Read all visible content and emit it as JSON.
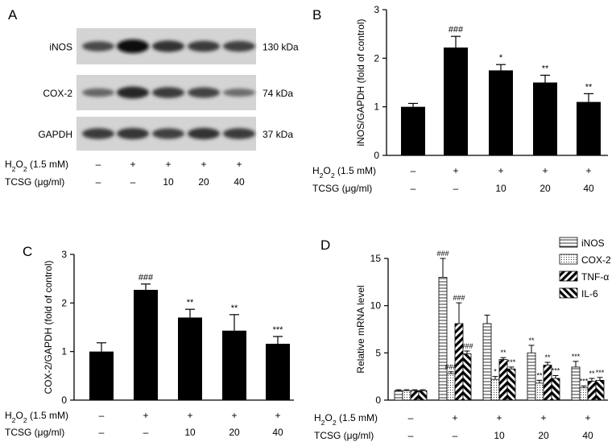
{
  "figure": {
    "panels": [
      {
        "letter": "A",
        "type": "western_blot",
        "bands": [
          {
            "protein": "iNOS",
            "size": "130 kDa",
            "intensities": [
              0.55,
              1.0,
              0.72,
              0.65,
              0.62
            ]
          },
          {
            "protein": "COX-2",
            "size": "74 kDa",
            "intensities": [
              0.35,
              0.8,
              0.65,
              0.6,
              0.3
            ]
          },
          {
            "protein": "GAPDH",
            "size": "37 kDa",
            "intensities": [
              0.65,
              0.7,
              0.62,
              0.72,
              0.65
            ]
          }
        ],
        "conditions": {
          "h2o2_label": "H2O2 (1.5 mM)",
          "tcsg_label": "TCSG (μg/ml)",
          "h2o2": [
            "–",
            "+",
            "+",
            "+",
            "+"
          ],
          "tcsg": [
            "–",
            "–",
            "10",
            "20",
            "40"
          ]
        }
      }
    ]
  },
  "chart_data": [
    {
      "panel": "B",
      "type": "bar",
      "ylabel": "iNOS/GAPDH (fold of control)",
      "ylim": [
        0,
        3
      ],
      "yticks": [
        "0",
        "1",
        "2",
        "3"
      ],
      "values": [
        1.0,
        2.22,
        1.75,
        1.5,
        1.1
      ],
      "errors": [
        0.07,
        0.23,
        0.12,
        0.15,
        0.17
      ],
      "annotations": [
        "",
        "###",
        "*",
        "**",
        "**"
      ],
      "h2o2_label": "H2O2 (1.5 mM)",
      "tcsg_label": "TCSG (μg/ml)",
      "h2o2": [
        "–",
        "+",
        "+",
        "+",
        "+"
      ],
      "tcsg": [
        "–",
        "–",
        "10",
        "20",
        "40"
      ]
    },
    {
      "panel": "C",
      "type": "bar",
      "ylabel": "COX-2/GAPDH (fold of control)",
      "ylim": [
        0,
        3
      ],
      "yticks": [
        "0",
        "1",
        "2",
        "3"
      ],
      "values": [
        1.0,
        2.27,
        1.7,
        1.43,
        1.16
      ],
      "errors": [
        0.18,
        0.12,
        0.17,
        0.33,
        0.15
      ],
      "annotations": [
        "",
        "###",
        "**",
        "**",
        "***"
      ],
      "h2o2_label": "H2O2 (1.5 mM)",
      "tcsg_label": "TCSG (μg/ml)",
      "h2o2": [
        "–",
        "+",
        "+",
        "+",
        "+"
      ],
      "tcsg": [
        "–",
        "–",
        "10",
        "20",
        "40"
      ]
    },
    {
      "panel": "D",
      "type": "bar",
      "ylabel": "Relative mRNA level",
      "ylim": [
        0,
        15
      ],
      "yticks": [
        "0",
        "5",
        "10",
        "15"
      ],
      "legend_position": "top-right",
      "series": [
        {
          "name": "iNOS",
          "values": [
            1.0,
            13.0,
            8.1,
            5.0,
            3.5
          ],
          "errors": [
            0.1,
            2.0,
            0.9,
            0.8,
            0.6
          ],
          "annotations": [
            "",
            "###",
            "",
            "**",
            "***"
          ]
        },
        {
          "name": "COX-2",
          "values": [
            1.0,
            2.8,
            2.2,
            1.8,
            1.3
          ],
          "errors": [
            0.1,
            0.2,
            0.3,
            0.3,
            0.2
          ],
          "annotations": [
            "",
            "###",
            "*",
            "**",
            "***"
          ]
        },
        {
          "name": "TNF-α",
          "values": [
            1.0,
            8.1,
            4.3,
            3.7,
            2.0
          ],
          "errors": [
            0.1,
            2.2,
            0.2,
            0.3,
            0.3
          ],
          "annotations": [
            "",
            "###",
            "**",
            "**",
            "**"
          ]
        },
        {
          "name": "IL-6",
          "values": [
            1.0,
            4.9,
            3.3,
            2.3,
            2.1
          ],
          "errors": [
            0.1,
            0.3,
            0.2,
            0.3,
            0.3
          ],
          "annotations": [
            "",
            "###",
            "***",
            "***",
            "***"
          ]
        }
      ],
      "h2o2_label": "H2O2 (1.5 mM)",
      "tcsg_label": "TCSG (μg/ml)",
      "h2o2": [
        "–",
        "+",
        "+",
        "+",
        "+"
      ],
      "tcsg": [
        "–",
        "–",
        "10",
        "20",
        "40"
      ]
    }
  ]
}
